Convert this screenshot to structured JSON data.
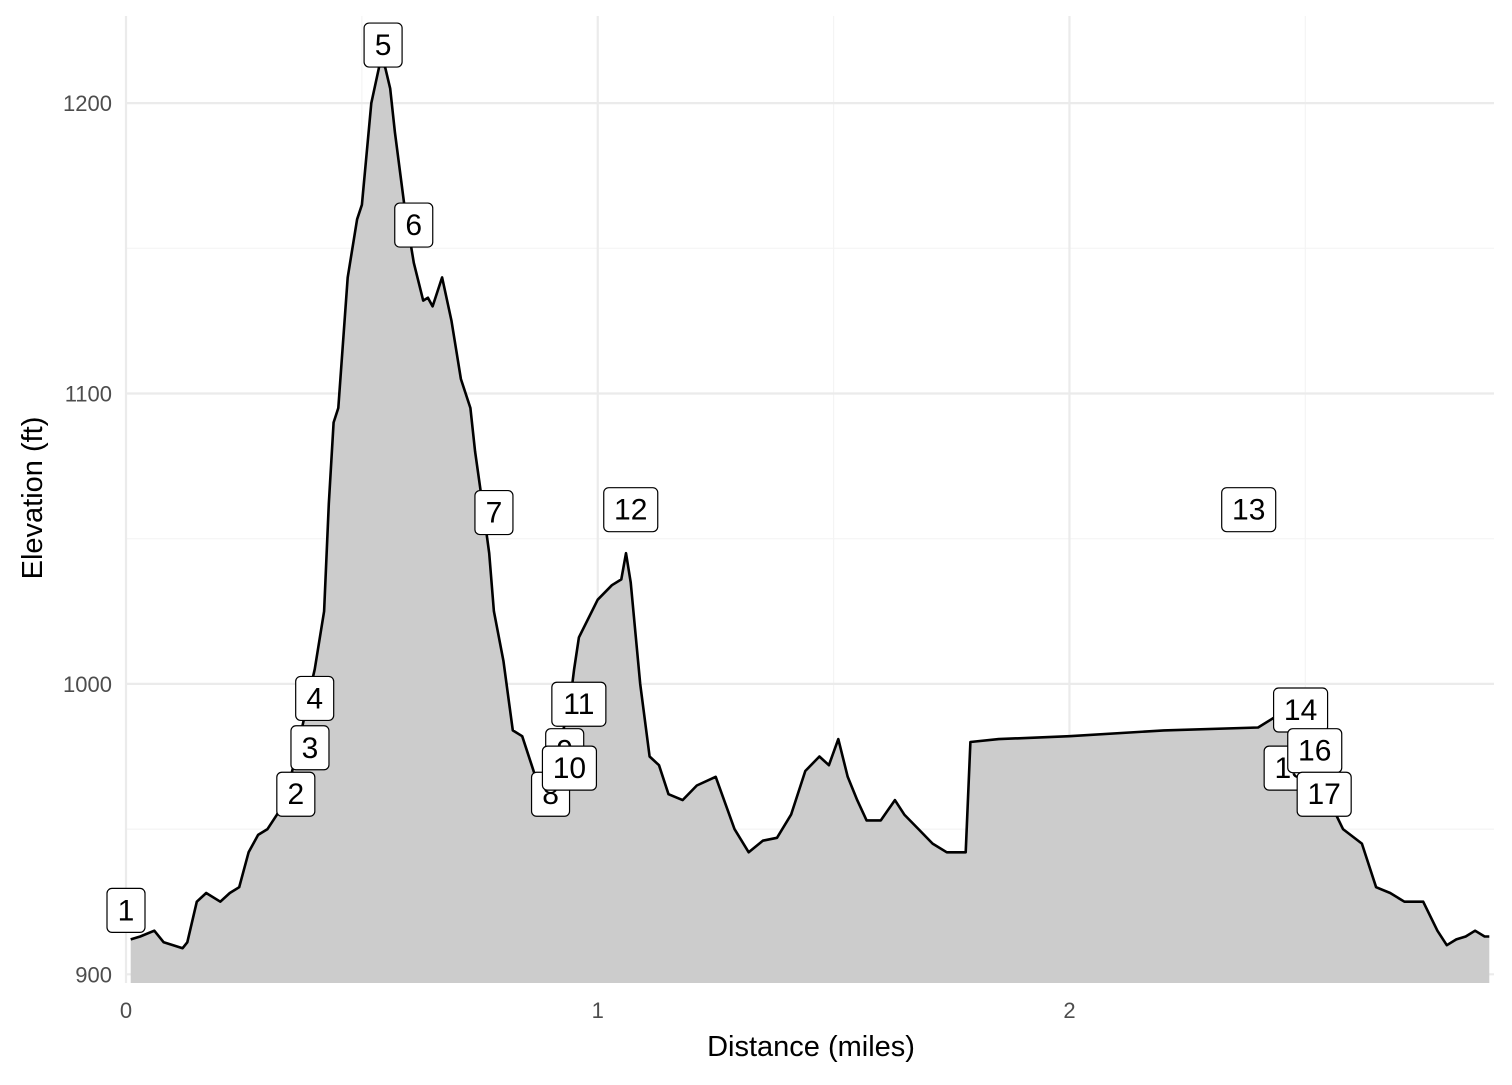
{
  "chart_data": {
    "type": "area",
    "xlabel": "Distance (miles)",
    "ylabel": "Elevation (ft)",
    "xlim": [
      0,
      2.9
    ],
    "ylim": [
      897,
      1230
    ],
    "x_ticks": [
      0,
      1,
      2
    ],
    "x_tick_labels": [
      "0",
      "1",
      "2"
    ],
    "y_ticks": [
      900,
      1000,
      1100,
      1200
    ],
    "y_tick_labels": [
      "900",
      "1000",
      "1100",
      "1200"
    ],
    "grid": true,
    "legend": "none",
    "colors": {
      "fill": "#cccccc",
      "line": "#000000",
      "grid_major": "#ebebeb",
      "grid_minor": "#f4f4f4"
    },
    "series": [
      {
        "x": [
          0.01,
          0.03,
          0.06,
          0.08,
          0.1,
          0.12,
          0.13,
          0.15,
          0.17,
          0.2,
          0.22,
          0.24,
          0.26,
          0.28,
          0.3,
          0.32,
          0.34,
          0.36,
          0.38,
          0.39,
          0.4,
          0.42,
          0.43,
          0.44,
          0.45,
          0.47,
          0.49,
          0.5,
          0.52,
          0.54,
          0.55,
          0.56,
          0.57,
          0.59,
          0.6,
          0.61,
          0.63,
          0.64,
          0.65,
          0.67,
          0.69,
          0.7,
          0.71,
          0.73,
          0.74,
          0.76,
          0.77,
          0.78,
          0.8,
          0.82,
          0.84,
          0.86,
          0.88,
          0.9,
          0.92,
          0.94,
          0.95,
          0.96,
          1.0,
          1.03,
          1.05,
          1.06,
          1.07,
          1.09,
          1.11,
          1.13,
          1.15,
          1.18,
          1.21,
          1.25,
          1.29,
          1.32,
          1.35,
          1.38,
          1.41,
          1.44,
          1.47,
          1.49,
          1.51,
          1.53,
          1.55,
          1.57,
          1.6,
          1.63,
          1.65,
          1.68,
          1.71,
          1.74,
          1.76,
          1.78,
          1.79,
          1.85,
          2.0,
          2.2,
          2.4,
          2.45,
          2.48,
          2.52,
          2.55,
          2.58,
          2.62,
          2.65,
          2.68,
          2.71,
          2.75,
          2.78,
          2.8,
          2.82,
          2.84,
          2.86,
          2.88,
          2.89
        ],
        "y": [
          912,
          913,
          915,
          911,
          910,
          909,
          911,
          925,
          928,
          925,
          928,
          930,
          942,
          948,
          950,
          955,
          962,
          975,
          990,
          998,
          1005,
          1025,
          1062,
          1090,
          1095,
          1140,
          1160,
          1165,
          1200,
          1215,
          1212,
          1205,
          1190,
          1165,
          1155,
          1145,
          1132,
          1133,
          1130,
          1140,
          1125,
          1115,
          1105,
          1095,
          1080,
          1057,
          1045,
          1025,
          1008,
          984,
          982,
          972,
          962,
          970,
          980,
          992,
          1005,
          1016,
          1029,
          1034,
          1036,
          1045,
          1035,
          1000,
          975,
          972,
          962,
          960,
          965,
          968,
          950,
          942,
          946,
          947,
          955,
          970,
          975,
          972,
          981,
          968,
          960,
          953,
          953,
          960,
          955,
          950,
          945,
          942,
          942,
          942,
          980,
          981,
          982,
          984,
          985,
          990,
          985,
          975,
          960,
          950,
          945,
          930,
          928,
          925,
          925,
          915,
          910,
          912,
          913,
          915,
          913,
          913
        ]
      }
    ],
    "waypoint_labels": [
      {
        "text": "1",
        "x": 0.0,
        "y": 922
      },
      {
        "text": "2",
        "x": 0.36,
        "y": 962
      },
      {
        "text": "3",
        "x": 0.39,
        "y": 978
      },
      {
        "text": "4",
        "x": 0.4,
        "y": 995
      },
      {
        "text": "5",
        "x": 0.545,
        "y": 1220
      },
      {
        "text": "6",
        "x": 0.61,
        "y": 1158
      },
      {
        "text": "7",
        "x": 0.78,
        "y": 1059
      },
      {
        "text": "8",
        "x": 0.9,
        "y": 962
      },
      {
        "text": "9",
        "x": 0.93,
        "y": 977
      },
      {
        "text": "10",
        "x": 0.94,
        "y": 971
      },
      {
        "text": "11",
        "x": 0.96,
        "y": 993
      },
      {
        "text": "12",
        "x": 1.07,
        "y": 1060
      },
      {
        "text": "13",
        "x": 2.38,
        "y": 1060
      },
      {
        "text": "15",
        "x": 2.47,
        "y": 971
      },
      {
        "text": "14",
        "x": 2.49,
        "y": 991
      },
      {
        "text": "16",
        "x": 2.52,
        "y": 977
      },
      {
        "text": "17",
        "x": 2.54,
        "y": 962
      }
    ]
  }
}
